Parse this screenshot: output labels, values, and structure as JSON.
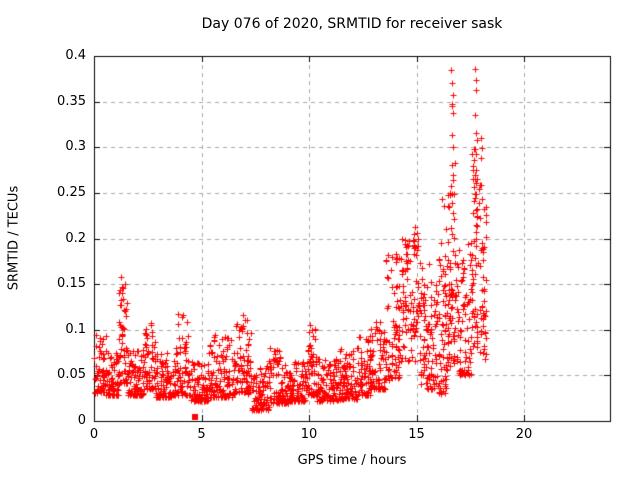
{
  "window": {
    "background": "#ffffff"
  },
  "chart_data": {
    "type": "scatter",
    "title": "Day 076 of 2020, SRMTID for receiver sask",
    "xlabel": "GPS time / hours",
    "ylabel": "SRMTID / TECUs",
    "xlim": [
      0,
      24
    ],
    "ylim": [
      0,
      0.4
    ],
    "x_ticks": [
      0,
      5,
      10,
      15,
      20
    ],
    "x_tick_labels": [
      "0",
      "5",
      "10",
      "15",
      "20"
    ],
    "y_ticks": [
      0,
      0.05,
      0.1,
      0.15,
      0.2,
      0.25,
      0.3,
      0.35,
      0.4
    ],
    "y_tick_labels": [
      "0",
      "0.05",
      "0.1",
      "0.15",
      "0.2",
      "0.25",
      "0.3",
      "0.35",
      "0.4"
    ],
    "grid": true,
    "grid_style": "dashed",
    "grid_color": "#a8a8a8",
    "axis_color": "#000000",
    "legend": "none",
    "marker": "plus",
    "marker_color": "#ff0000",
    "marker_size_px": 7,
    "data_time_span_hours": [
      0,
      18.25
    ],
    "max_value": 0.386,
    "max_value_time": 17.73,
    "seed": 20200076,
    "segments_format": "[t_start_h, t_end_h, n_points, v_min_TECU, v_max_TECU, density_shape_exponent]",
    "density_segments": [
      [
        0.0,
        0.55,
        60,
        0.03,
        0.095,
        1.8
      ],
      [
        0.55,
        1.15,
        65,
        0.028,
        0.075,
        2.0
      ],
      [
        1.15,
        1.55,
        55,
        0.04,
        0.15,
        1.6
      ],
      [
        1.55,
        2.35,
        85,
        0.028,
        0.078,
        2.2
      ],
      [
        2.35,
        2.85,
        55,
        0.035,
        0.112,
        1.8
      ],
      [
        2.85,
        3.65,
        85,
        0.026,
        0.075,
        2.2
      ],
      [
        3.65,
        4.45,
        80,
        0.028,
        0.12,
        2.0
      ],
      [
        4.45,
        5.35,
        90,
        0.022,
        0.065,
        2.0
      ],
      [
        5.35,
        6.45,
        110,
        0.026,
        0.095,
        2.2
      ],
      [
        6.45,
        7.35,
        90,
        0.03,
        0.112,
        1.8
      ],
      [
        7.35,
        8.15,
        85,
        0.012,
        0.06,
        1.8
      ],
      [
        8.15,
        9.05,
        95,
        0.02,
        0.08,
        2.2
      ],
      [
        9.05,
        9.85,
        85,
        0.022,
        0.065,
        2.0
      ],
      [
        9.85,
        10.35,
        55,
        0.028,
        0.105,
        2.0
      ],
      [
        10.35,
        11.35,
        105,
        0.022,
        0.068,
        2.0
      ],
      [
        11.35,
        12.25,
        95,
        0.024,
        0.08,
        2.2
      ],
      [
        12.25,
        12.85,
        65,
        0.028,
        0.095,
        2.0
      ],
      [
        12.85,
        13.55,
        75,
        0.035,
        0.11,
        1.8
      ],
      [
        13.55,
        14.25,
        75,
        0.045,
        0.185,
        1.5
      ],
      [
        14.25,
        15.15,
        95,
        0.065,
        0.205,
        1.1
      ],
      [
        15.15,
        15.95,
        95,
        0.035,
        0.175,
        1.5
      ],
      [
        15.95,
        16.45,
        65,
        0.03,
        0.185,
        1.4
      ],
      [
        16.45,
        16.85,
        60,
        0.06,
        0.29,
        1.2
      ],
      [
        16.85,
        17.55,
        80,
        0.05,
        0.2,
        1.5
      ],
      [
        17.55,
        17.95,
        55,
        0.08,
        0.3,
        1.2
      ],
      [
        17.95,
        18.25,
        40,
        0.065,
        0.24,
        1.5
      ]
    ],
    "outlier_points": [
      [
        1.25,
        0.158
      ],
      [
        1.28,
        0.147
      ],
      [
        1.31,
        0.14
      ],
      [
        6.95,
        0.116
      ],
      [
        7.02,
        0.111
      ],
      [
        10.05,
        0.105
      ],
      [
        10.12,
        0.1
      ],
      [
        14.45,
        0.198
      ],
      [
        14.52,
        0.191
      ],
      [
        14.95,
        0.213
      ],
      [
        15.02,
        0.206
      ],
      [
        15.08,
        0.2
      ],
      [
        16.15,
        0.195
      ],
      [
        16.2,
        0.243
      ],
      [
        16.28,
        0.236
      ],
      [
        16.35,
        0.21
      ],
      [
        16.62,
        0.385
      ],
      [
        16.67,
        0.37
      ],
      [
        16.7,
        0.357
      ],
      [
        16.64,
        0.347
      ],
      [
        16.66,
        0.345
      ],
      [
        16.69,
        0.337
      ],
      [
        16.63,
        0.313
      ],
      [
        16.68,
        0.3
      ],
      [
        16.66,
        0.281
      ],
      [
        16.72,
        0.27
      ],
      [
        16.61,
        0.257
      ],
      [
        16.67,
        0.249
      ],
      [
        16.71,
        0.228
      ],
      [
        16.62,
        0.212
      ],
      [
        16.65,
        0.205
      ],
      [
        17.73,
        0.386
      ],
      [
        17.78,
        0.374
      ],
      [
        17.75,
        0.363
      ],
      [
        17.7,
        0.335
      ],
      [
        17.77,
        0.316
      ],
      [
        17.8,
        0.308
      ],
      [
        17.74,
        0.298
      ],
      [
        17.78,
        0.293
      ],
      [
        17.72,
        0.27
      ],
      [
        17.79,
        0.261
      ],
      [
        17.71,
        0.249
      ],
      [
        17.76,
        0.231
      ],
      [
        17.81,
        0.214
      ],
      [
        17.98,
        0.259
      ],
      [
        18.0,
        0.31
      ],
      [
        18.02,
        0.288
      ],
      [
        18.04,
        0.299
      ],
      [
        18.06,
        0.243
      ],
      [
        18.1,
        0.158
      ],
      [
        18.15,
        0.132
      ]
    ],
    "special_points": [
      {
        "x": 4.71,
        "y": 0.004,
        "marker": "square"
      }
    ]
  }
}
